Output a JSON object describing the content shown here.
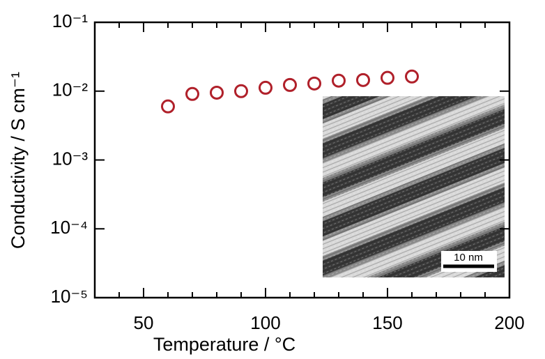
{
  "chart_data": {
    "type": "scatter",
    "x_label": "Temperature / °C",
    "y_label": "Conductivity / S cm⁻¹",
    "x": [
      60,
      70,
      80,
      90,
      100,
      110,
      120,
      130,
      140,
      150,
      160
    ],
    "series": [
      {
        "color": "#b0202a",
        "values": [
          0.006,
          0.0091,
          0.0095,
          0.01,
          0.0112,
          0.0123,
          0.0129,
          0.0142,
          0.0145,
          0.0156,
          0.0163
        ]
      }
    ],
    "xlim": [
      30,
      200
    ],
    "xticks": [
      50,
      100,
      150,
      200
    ],
    "x_minor_ticks": [
      40,
      60,
      70,
      80,
      90,
      110,
      120,
      130,
      140,
      160,
      170,
      180,
      190
    ],
    "ylim": [
      1e-05,
      0.1
    ],
    "y_log": true,
    "yticks": [
      {
        "value": 1e-05,
        "label": "10⁻⁵"
      },
      {
        "value": 0.0001,
        "label": "10⁻⁴"
      },
      {
        "value": 0.001,
        "label": "10⁻³"
      },
      {
        "value": 0.01,
        "label": "10⁻²"
      },
      {
        "value": 0.1,
        "label": "10⁻¹"
      }
    ],
    "inset_scale_label": "10 nm"
  }
}
